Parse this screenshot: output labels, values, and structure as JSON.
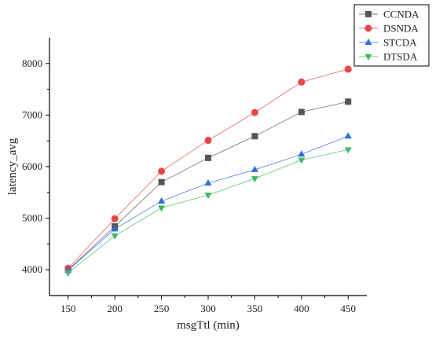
{
  "chart_data": {
    "type": "line",
    "xlabel": "msgTtl (min)",
    "ylabel": "latency_avg",
    "x": [
      150,
      200,
      250,
      300,
      350,
      400,
      450
    ],
    "xlim": [
      130,
      470
    ],
    "ylim": [
      3500,
      8500
    ],
    "xticks": [
      150,
      200,
      250,
      300,
      350,
      400,
      450
    ],
    "yticks": [
      4000,
      5000,
      6000,
      7000,
      8000
    ],
    "legend_position": "top-right",
    "grid": false,
    "series": [
      {
        "name": "CCNDA",
        "color": "#555555",
        "marker": "square",
        "values": [
          4000,
          4840,
          5700,
          6170,
          6590,
          7060,
          7260
        ]
      },
      {
        "name": "DSNDA",
        "color": "#e84545",
        "marker": "circle",
        "values": [
          4030,
          4990,
          5910,
          6510,
          7050,
          7640,
          7890
        ]
      },
      {
        "name": "STCDA",
        "color": "#2f6fd8",
        "marker": "triangle-up",
        "values": [
          3990,
          4790,
          5330,
          5680,
          5940,
          6240,
          6590
        ]
      },
      {
        "name": "DTSDA",
        "color": "#3fb86a",
        "marker": "triangle-down",
        "values": [
          3940,
          4660,
          5200,
          5450,
          5770,
          6130,
          6330
        ]
      }
    ]
  }
}
